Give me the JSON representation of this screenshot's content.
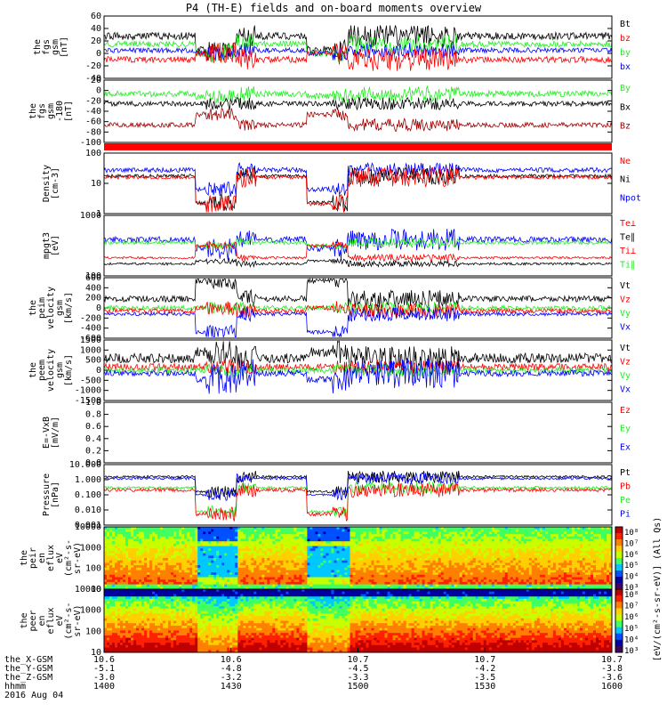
{
  "title": "P4 (TH-E) fields and on-board moments overview",
  "colors": {
    "black": "#000000",
    "red": "#ff0000",
    "green": "#22ee22",
    "blue": "#0000ff",
    "darkred": "#a00000"
  },
  "panels": [
    {
      "id": "fgs",
      "ylabel": [
        "the",
        "fgs",
        "gsm",
        "[nT]"
      ],
      "ticks": [
        "60",
        "40",
        "20",
        "0",
        "-20",
        "-40"
      ],
      "legend": [
        {
          "text": "Bt",
          "color": "black"
        },
        {
          "text": "bz",
          "color": "red"
        },
        {
          "text": "by",
          "color": "green"
        },
        {
          "text": "bx",
          "color": "blue"
        }
      ]
    },
    {
      "id": "fgs_angles",
      "ylabel": [
        "the",
        "fgs",
        "gsm",
        "-180",
        "[nT]"
      ],
      "ticks": [
        "20",
        "0",
        "-20",
        "-40",
        "-60",
        "-80",
        "-100"
      ],
      "legend": [
        {
          "text": "By",
          "color": "green"
        },
        {
          "text": "Bx",
          "color": "black"
        },
        {
          "text": "Bz",
          "color": "darkred"
        }
      ]
    },
    {
      "id": "bar",
      "ylabel": [],
      "ticks": [],
      "legend": []
    },
    {
      "id": "density",
      "ylabel": [
        "Density",
        "[cm-3]"
      ],
      "ticks": [
        "100",
        "10",
        "1"
      ],
      "legend": [
        {
          "text": "Ne",
          "color": "red"
        },
        {
          "text": "Ni",
          "color": "black"
        },
        {
          "text": "Npot",
          "color": "blue"
        }
      ]
    },
    {
      "id": "temp",
      "ylabel": [
        "mpgt3",
        "[eV]"
      ],
      "ticks": [
        "1000",
        "100"
      ],
      "legend": [
        {
          "text": "Te⊥",
          "color": "red"
        },
        {
          "text": "Te∥",
          "color": "black"
        },
        {
          "text": "Ti⊥",
          "color": "red"
        },
        {
          "text": "Ti∥",
          "color": "green"
        }
      ]
    },
    {
      "id": "vi",
      "ylabel": [
        "the",
        "peim",
        "velocity",
        "gsm",
        "[km/s]"
      ],
      "ticks": [
        "600",
        "400",
        "200",
        "0",
        "-200",
        "-400",
        "-600"
      ],
      "legend": [
        {
          "text": "Vt",
          "color": "black"
        },
        {
          "text": "Vz",
          "color": "red"
        },
        {
          "text": "Vy",
          "color": "green"
        },
        {
          "text": "Vx",
          "color": "blue"
        }
      ]
    },
    {
      "id": "ve",
      "ylabel": [
        "the",
        "peem",
        "velocity",
        "gsm",
        "[km/s]"
      ],
      "ticks": [
        "1500",
        "1000",
        "500",
        "0",
        "-500",
        "-1000",
        "-1500"
      ],
      "legend": [
        {
          "text": "Vt",
          "color": "black"
        },
        {
          "text": "Vz",
          "color": "red"
        },
        {
          "text": "Vy",
          "color": "green"
        },
        {
          "text": "Vx",
          "color": "blue"
        }
      ]
    },
    {
      "id": "efield",
      "ylabel": [
        "E=-VxB",
        "[mV/m]"
      ],
      "ticks": [
        "1.0",
        "0.8",
        "0.6",
        "0.4",
        "0.2",
        "0.0"
      ],
      "legend": [
        {
          "text": "Ez",
          "color": "red"
        },
        {
          "text": "Ey",
          "color": "green"
        },
        {
          "text": "Ex",
          "color": "blue"
        }
      ]
    },
    {
      "id": "pressure",
      "ylabel": [
        "Pressure",
        "[nPa]"
      ],
      "ticks": [
        "10.000",
        "1.000",
        "0.100",
        "0.010",
        "0.001"
      ],
      "legend": [
        {
          "text": "Pt",
          "color": "black"
        },
        {
          "text": "Pb",
          "color": "red"
        },
        {
          "text": "Pe",
          "color": "green"
        },
        {
          "text": "Pi",
          "color": "blue"
        }
      ]
    },
    {
      "id": "spec_i",
      "ylabel": [
        "the",
        "peir",
        "en",
        "eflux",
        "eV",
        "(cm²-s-",
        "sr-eV)"
      ],
      "ticks": [
        "10000",
        "1000",
        "100",
        "10"
      ],
      "legend": []
    },
    {
      "id": "spec_e",
      "ylabel": [
        "the",
        "peer",
        "en",
        "eflux",
        "eV",
        "(cm²-s-",
        "sr-eV)"
      ],
      "ticks": [
        "10000",
        "1000",
        "100",
        "10"
      ],
      "legend": []
    }
  ],
  "colorbar": {
    "labels_top": [
      "10⁸",
      "10⁷",
      "10⁶",
      "10⁵",
      "10⁴",
      "10³"
    ],
    "labels_bottom": [
      "10⁸",
      "10⁷",
      "10⁶",
      "10⁵",
      "10⁴",
      "10³"
    ],
    "side_label": "[eV/(cm²-s-sr-eV)] (All Qs)"
  },
  "footer": {
    "rows": [
      {
        "label": "the_X-GSM",
        "values": [
          "10.6",
          "10.6",
          "10.7",
          "10.7",
          "10.7"
        ]
      },
      {
        "label": "the_Y-GSM",
        "values": [
          "-5.1",
          "-4.8",
          "-4.5",
          "-4.2",
          "-3.8"
        ]
      },
      {
        "label": "the_Z-GSM",
        "values": [
          "-3.0",
          "-3.2",
          "-3.3",
          "-3.5",
          "-3.6"
        ]
      },
      {
        "label": "hhmm",
        "values": [
          "1400",
          "1430",
          "1500",
          "1530",
          "1600"
        ]
      }
    ],
    "date": "2016 Aug 04"
  },
  "chart_data": {
    "type": "line",
    "title": "P4 (TH-E) fields and on-board moments overview",
    "x_ticks": [
      "1400",
      "1430",
      "1500",
      "1530",
      "1600"
    ],
    "x_label": "hhmm",
    "date": "2016 Aug 04",
    "series": [
      {
        "name": "Bt",
        "panel": "fgs",
        "values": [
          30,
          30,
          8,
          32,
          35,
          28,
          25
        ]
      },
      {
        "name": "bz",
        "panel": "fgs",
        "values": [
          -12,
          -12,
          -2,
          -15,
          -10,
          -12,
          -10
        ]
      },
      {
        "name": "by",
        "panel": "fgs",
        "values": [
          15,
          15,
          5,
          20,
          18,
          12,
          20
        ]
      },
      {
        "name": "bx",
        "panel": "fgs",
        "values": [
          -5,
          -5,
          0,
          -5,
          -8,
          -5,
          -5
        ]
      },
      {
        "name": "Ne",
        "panel": "density",
        "values": [
          20,
          18,
          3,
          18,
          15,
          20,
          20
        ]
      },
      {
        "name": "Ni",
        "panel": "density",
        "values": [
          20,
          18,
          3,
          18,
          15,
          20,
          20
        ]
      },
      {
        "name": "Npot",
        "panel": "density",
        "values": [
          30,
          30,
          5,
          35,
          30,
          30,
          30
        ]
      }
    ]
  }
}
